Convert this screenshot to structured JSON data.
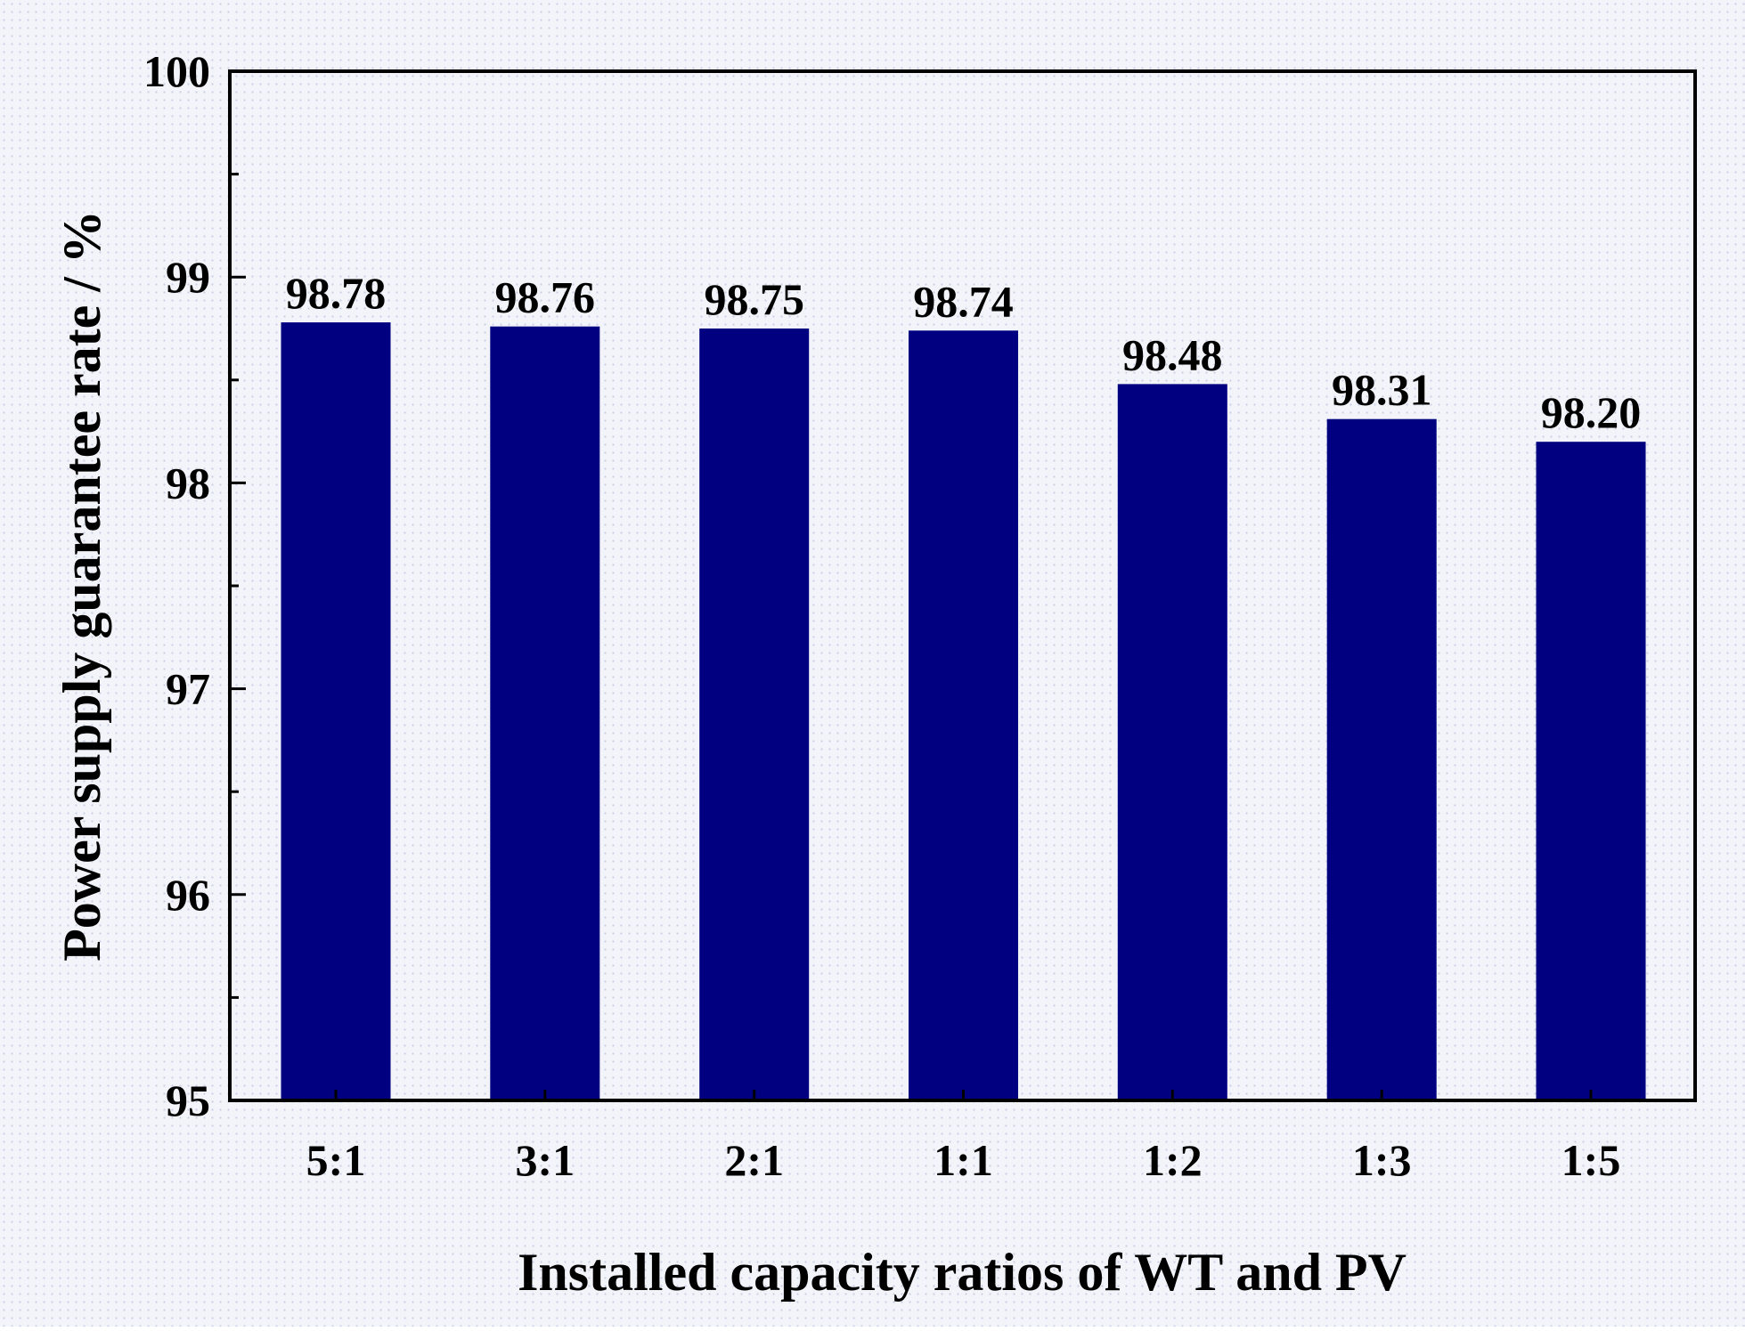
{
  "chart_data": {
    "type": "bar",
    "title": "",
    "xlabel": "Installed capacity ratios of WT and PV",
    "ylabel": "Power supply guarantee rate / %",
    "categories": [
      "5:1",
      "3:1",
      "2:1",
      "1:1",
      "1:2",
      "1:3",
      "1:5"
    ],
    "values": [
      98.78,
      98.76,
      98.75,
      98.74,
      98.48,
      98.31,
      98.2
    ],
    "value_labels": [
      "98.78",
      "98.76",
      "98.75",
      "98.74",
      "98.48",
      "98.31",
      "98.20"
    ],
    "ylim": [
      95,
      100
    ],
    "yticks": [
      95,
      96,
      97,
      98,
      99,
      100
    ],
    "ytick_labels": [
      "95",
      "96",
      "97",
      "98",
      "99",
      "100"
    ],
    "minor_ytick_step": 0.5,
    "grid": false,
    "legend": "none",
    "bar_color": "#000080"
  }
}
